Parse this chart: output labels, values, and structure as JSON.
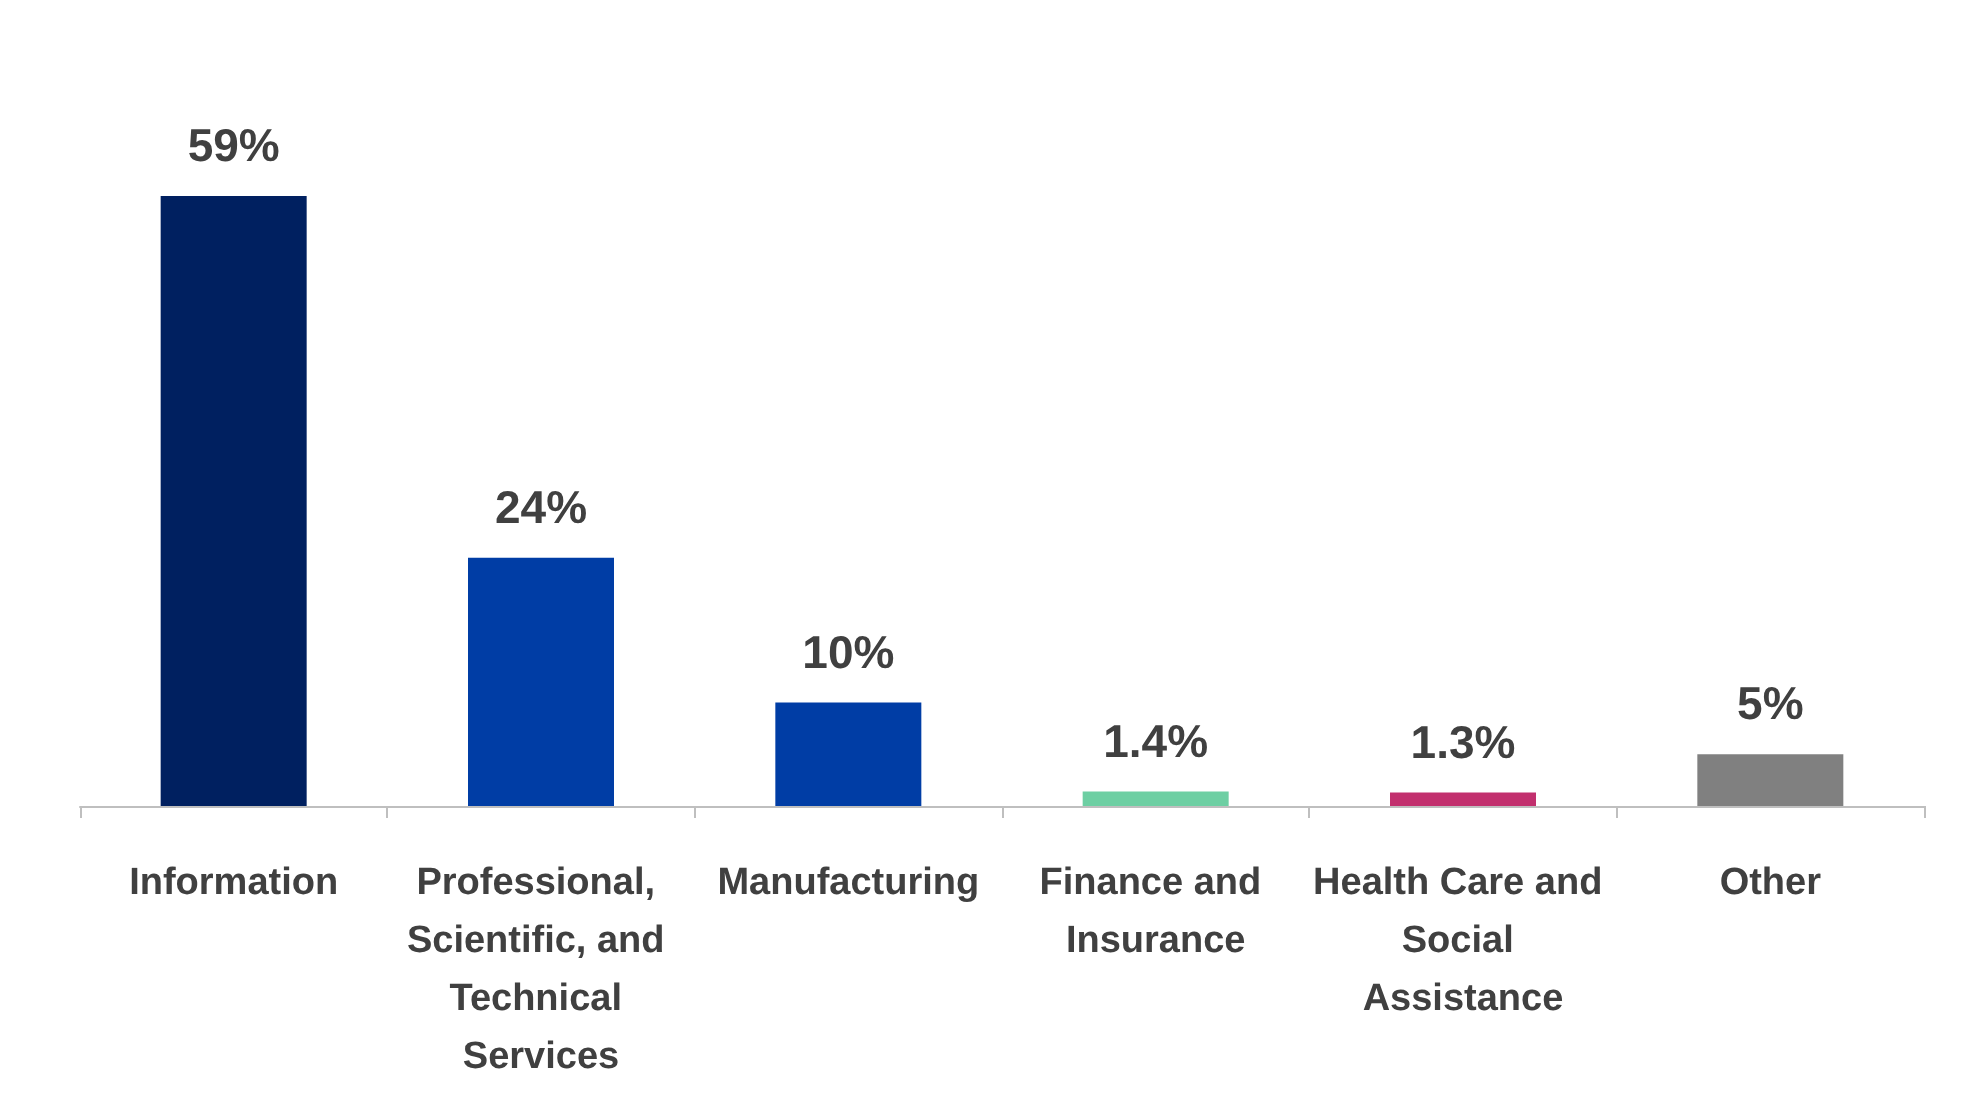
{
  "chart_data": {
    "type": "bar",
    "categories": [
      "Information",
      "Professional, Scientific, and Technical Services",
      "Manufacturing",
      "Finance and Insurance",
      "Health Care and Social Assistance",
      "Other"
    ],
    "values": [
      59,
      24,
      10,
      1.4,
      1.3,
      5
    ],
    "value_labels": [
      "59%",
      "24%",
      "10%",
      "1.4%",
      "1.3%",
      "5%"
    ],
    "colors": [
      "#002060",
      "#003da5",
      "#003da5",
      "#6dcfa3",
      "#c2306e",
      "#808080"
    ]
  }
}
